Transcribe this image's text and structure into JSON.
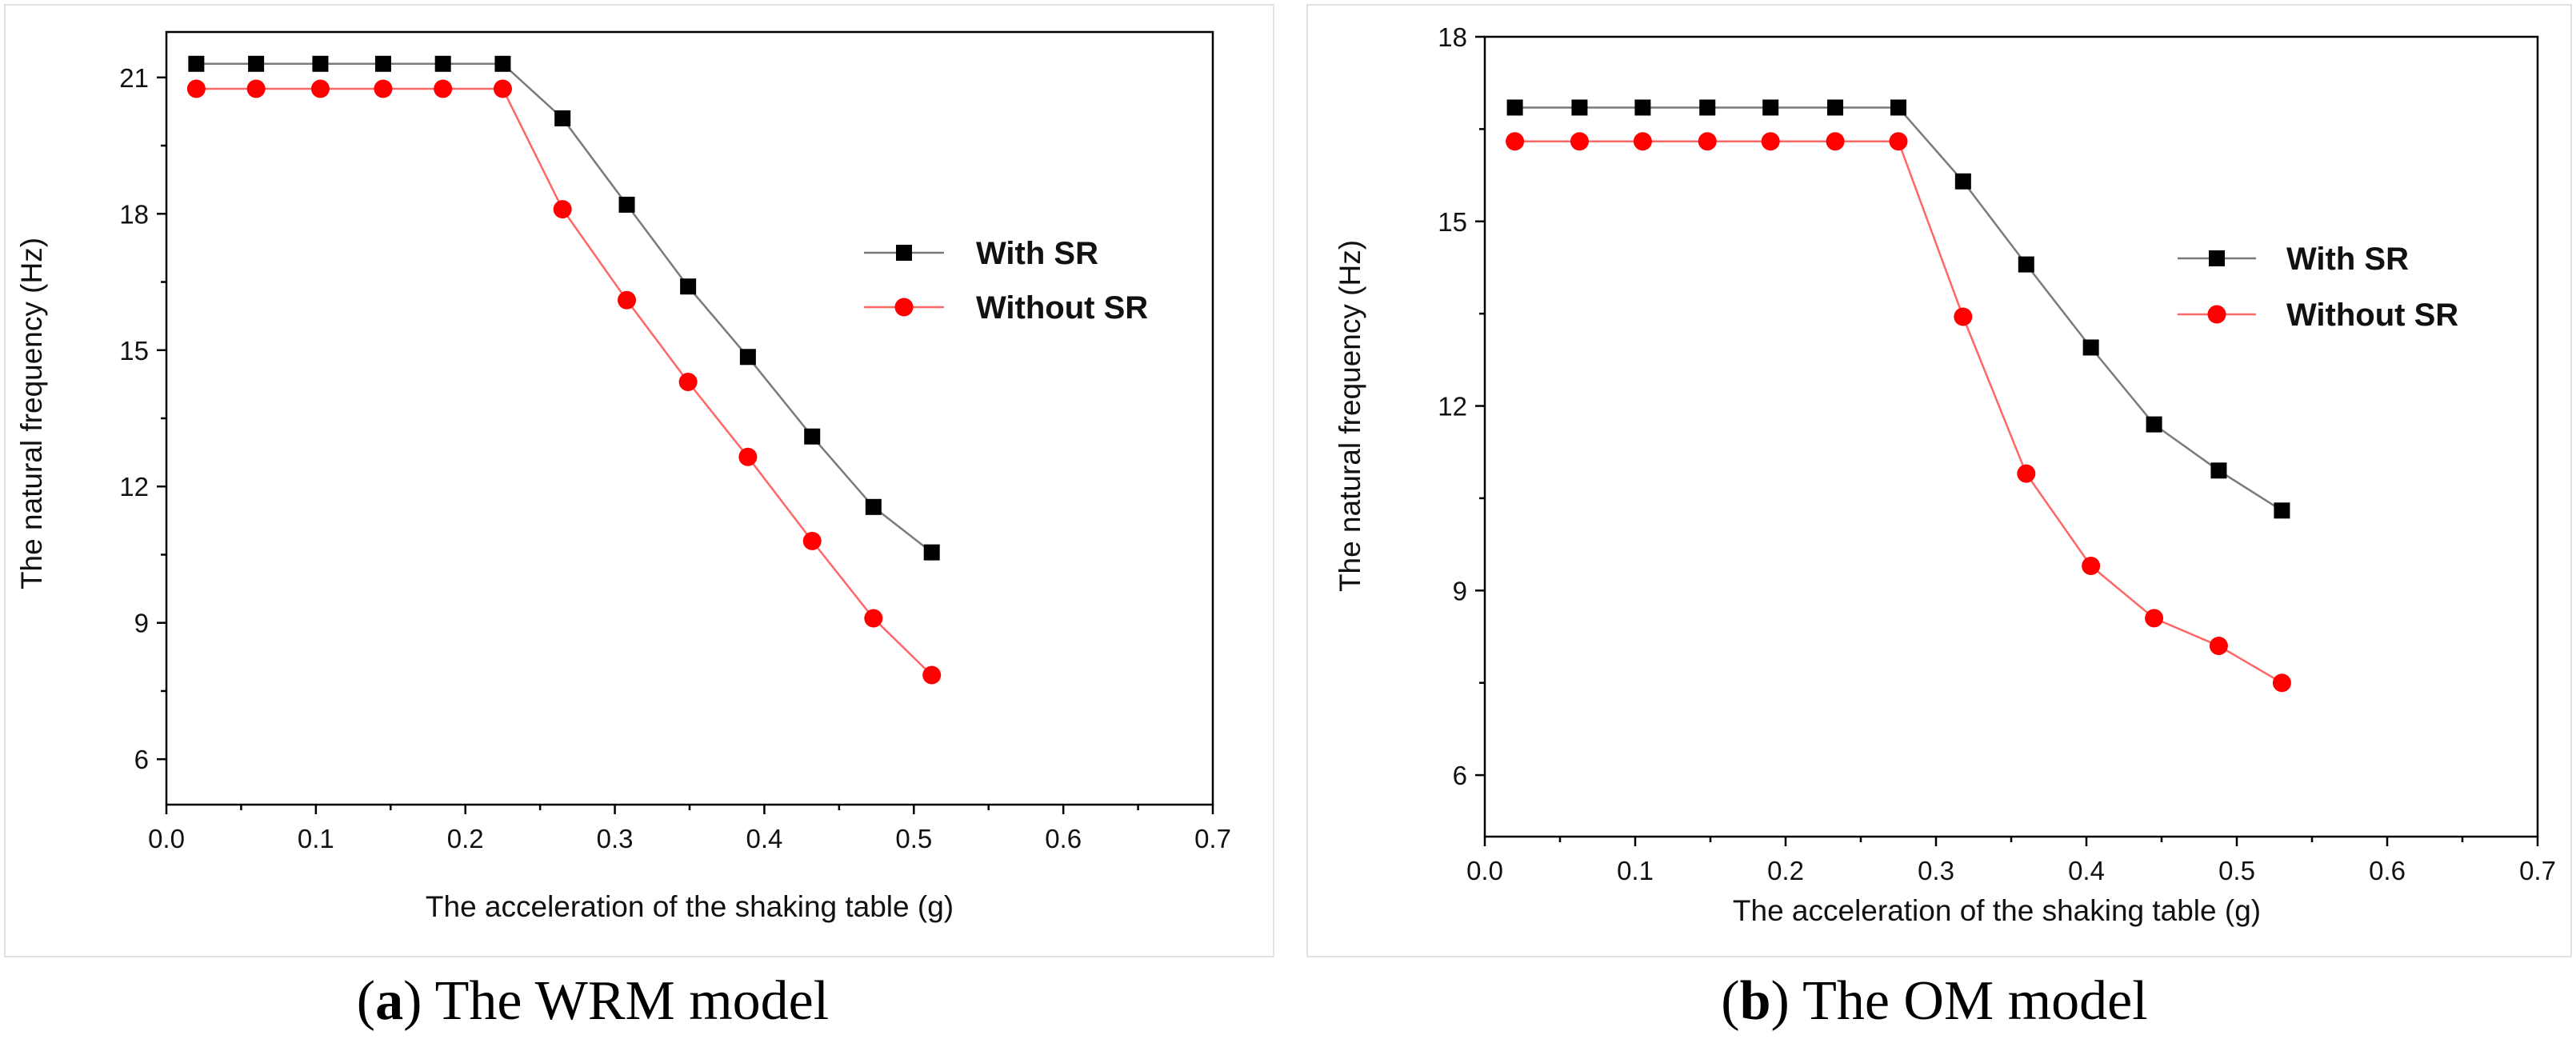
{
  "chart_data": [
    {
      "type": "line",
      "caption_letter": "a",
      "caption_text": " The WRM model",
      "xlabel": "The acceleration of the shaking table (g)",
      "ylabel": "The natural frequency (Hz)",
      "xlim": [
        0.0,
        0.7
      ],
      "ylim": [
        5.0,
        22.0
      ],
      "xticks": [
        "0.0",
        "0.1",
        "0.2",
        "0.3",
        "0.4",
        "0.5",
        "0.6",
        "0.7"
      ],
      "yticks": [
        "6",
        "9",
        "12",
        "15",
        "18",
        "21"
      ],
      "xtick_values": [
        0.0,
        0.1,
        0.2,
        0.3,
        0.4,
        0.5,
        0.6,
        0.7
      ],
      "ytick_values": [
        6,
        9,
        12,
        15,
        18,
        21
      ],
      "legend_position": "right-middle",
      "series": [
        {
          "name": "With SR",
          "marker": "square",
          "marker_color": "#000000",
          "line_color": "#7a7a7a",
          "x": [
            0.02,
            0.06,
            0.103,
            0.145,
            0.185,
            0.225,
            0.265,
            0.308,
            0.349,
            0.389,
            0.432,
            0.473,
            0.512
          ],
          "y": [
            21.3,
            21.3,
            21.3,
            21.3,
            21.3,
            21.3,
            20.1,
            18.2,
            16.4,
            14.85,
            13.1,
            11.55,
            10.55
          ]
        },
        {
          "name": "Without SR",
          "marker": "circle",
          "marker_color": "#ff0000",
          "line_color": "#ff6666",
          "x": [
            0.02,
            0.06,
            0.103,
            0.145,
            0.185,
            0.225,
            0.265,
            0.308,
            0.349,
            0.389,
            0.432,
            0.473,
            0.512
          ],
          "y": [
            20.75,
            20.75,
            20.75,
            20.75,
            20.75,
            20.75,
            18.1,
            16.1,
            14.3,
            12.65,
            10.8,
            9.1,
            7.85
          ]
        }
      ]
    },
    {
      "type": "line",
      "caption_letter": "b",
      "caption_text": " The OM model",
      "xlabel": "The acceleration of the shaking table (g)",
      "ylabel": "The natural frequency (Hz)",
      "xlim": [
        0.0,
        0.7
      ],
      "ylim": [
        5.0,
        18.0
      ],
      "xticks": [
        "0.0",
        "0.1",
        "0.2",
        "0.3",
        "0.4",
        "0.5",
        "0.6",
        "0.7"
      ],
      "yticks": [
        "6",
        "9",
        "12",
        "15",
        "18"
      ],
      "xtick_values": [
        0.0,
        0.1,
        0.2,
        0.3,
        0.4,
        0.5,
        0.6,
        0.7
      ],
      "ytick_values": [
        6,
        9,
        12,
        15,
        18
      ],
      "legend_position": "right-middle",
      "series": [
        {
          "name": "With SR",
          "marker": "square",
          "marker_color": "#000000",
          "line_color": "#7a7a7a",
          "x": [
            0.02,
            0.063,
            0.105,
            0.148,
            0.19,
            0.233,
            0.275,
            0.318,
            0.36,
            0.403,
            0.445,
            0.488,
            0.53
          ],
          "y": [
            16.85,
            16.85,
            16.85,
            16.85,
            16.85,
            16.85,
            16.85,
            15.65,
            14.3,
            12.95,
            11.7,
            10.95,
            10.3
          ]
        },
        {
          "name": "Without SR",
          "marker": "circle",
          "marker_color": "#ff0000",
          "line_color": "#ff6666",
          "x": [
            0.02,
            0.063,
            0.105,
            0.148,
            0.19,
            0.233,
            0.275,
            0.318,
            0.36,
            0.403,
            0.445,
            0.488,
            0.53
          ],
          "y": [
            16.3,
            16.3,
            16.3,
            16.3,
            16.3,
            16.3,
            16.3,
            13.45,
            10.9,
            9.4,
            8.55,
            8.1,
            7.5
          ]
        }
      ]
    }
  ]
}
